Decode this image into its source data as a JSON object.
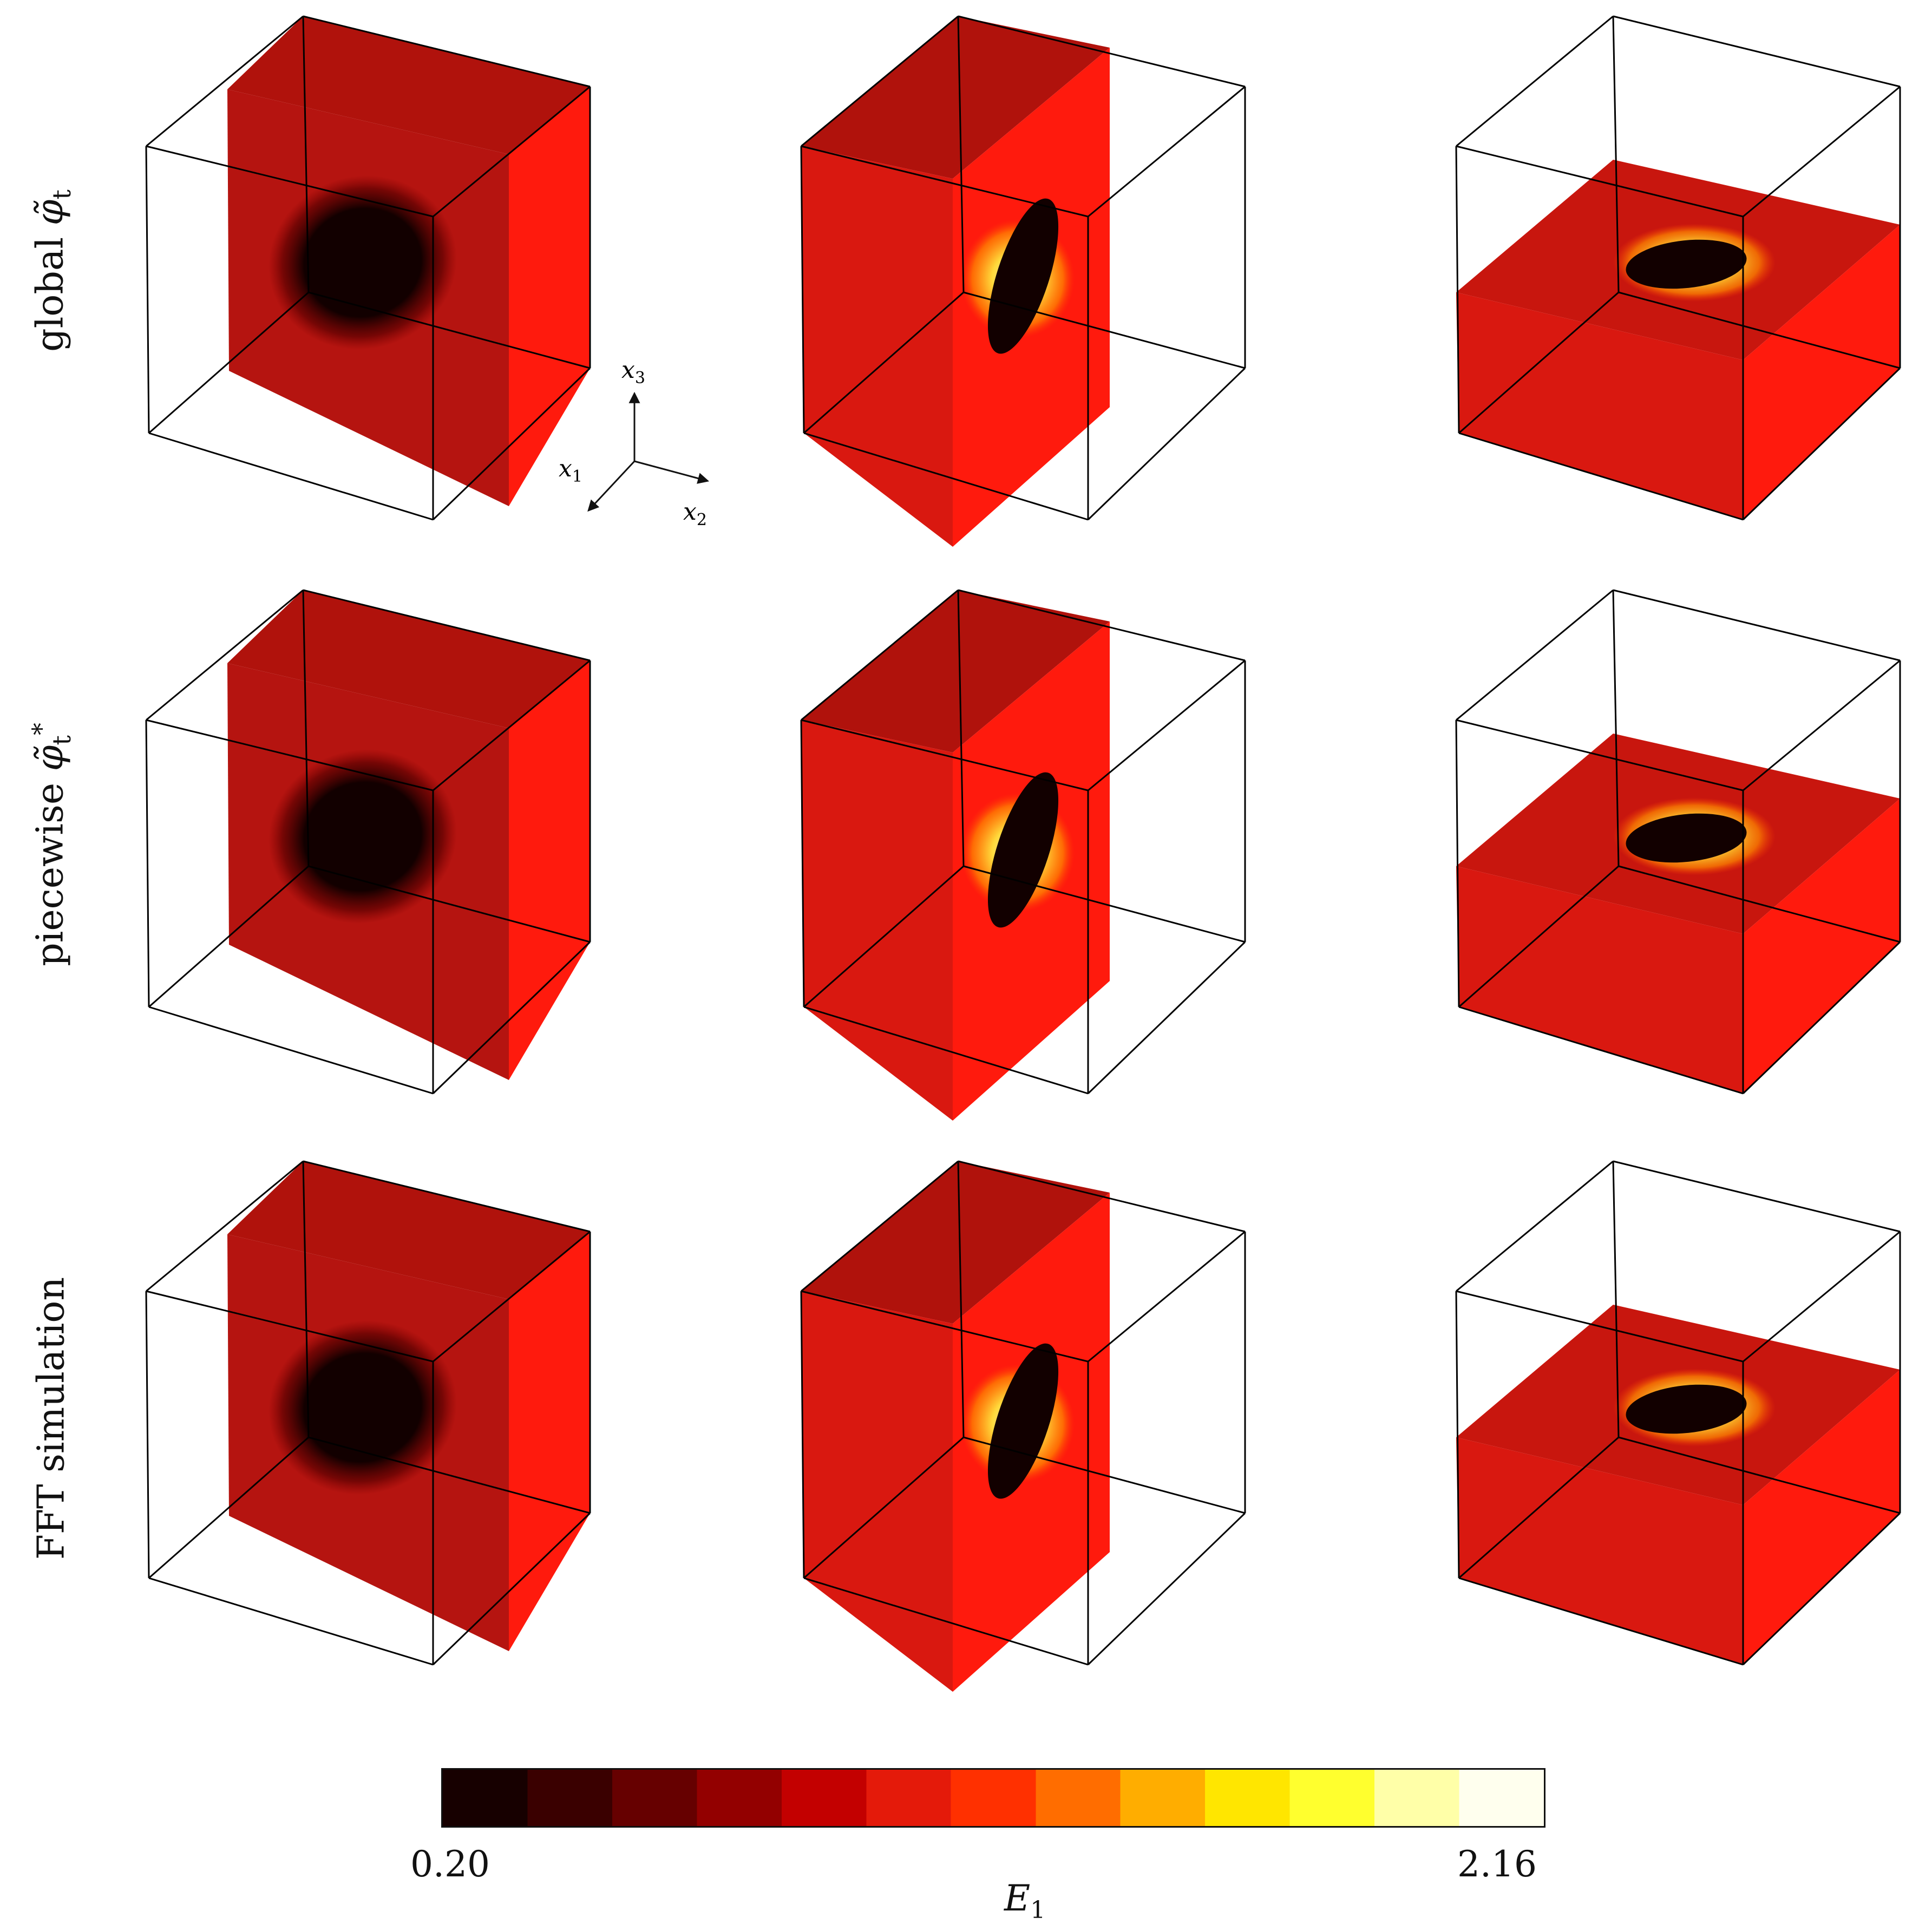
{
  "rows": [
    {
      "label_text": "global",
      "label_symbol": "φ̃",
      "label_sub": "t",
      "label_sup": ""
    },
    {
      "label_text": "piecewise",
      "label_symbol": "φ̃",
      "label_sub": "t",
      "label_sup": "*"
    },
    {
      "label_text": "FFT simulation",
      "label_symbol": "",
      "label_sub": "",
      "label_sup": ""
    }
  ],
  "columns": [
    "slice-normal-x1",
    "slice-normal-x2",
    "slice-normal-x3"
  ],
  "axes": {
    "x3": {
      "base": "x",
      "sub": "3"
    },
    "x1": {
      "base": "x",
      "sub": "1"
    },
    "x2": {
      "base": "x",
      "sub": "2"
    }
  },
  "colorbar": {
    "label_base": "E",
    "label_sub": "1",
    "min_label": "0.20",
    "max_label": "2.16",
    "min": 0.2,
    "max": 2.16,
    "colormap": [
      "#170000",
      "#3a0000",
      "#660000",
      "#930000",
      "#c30000",
      "#e41a0a",
      "#ff3000",
      "#ff6d00",
      "#ffad00",
      "#ffe600",
      "#ffff2e",
      "#ffffa8",
      "#ffffee"
    ]
  },
  "colors": {
    "field_base": "#d91810",
    "field_side": "#ff1a0d",
    "field_top": "#b0120c",
    "inclusion_core": "#120000",
    "hot_spot": "#ffee40",
    "edge": "#000000"
  }
}
